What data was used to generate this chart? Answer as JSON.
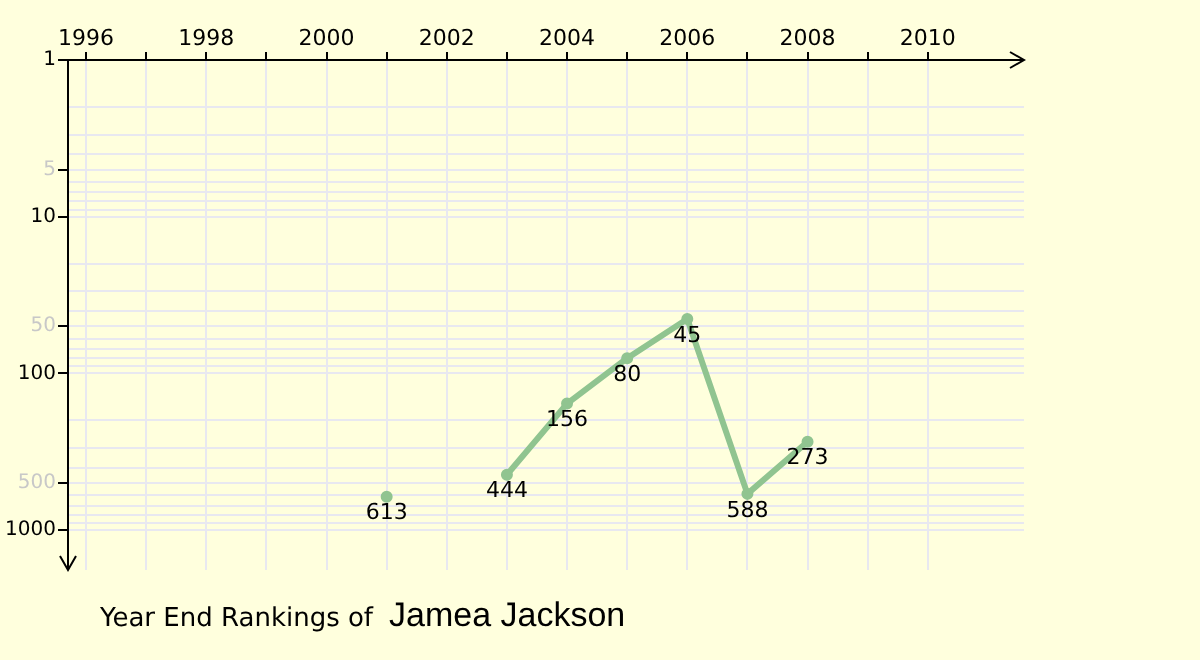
{
  "chart_data": {
    "type": "line",
    "title": "Year End Rankings of",
    "subtitle": "Jamea Jackson",
    "x": [
      2001,
      2002,
      2003,
      2004,
      2005,
      2006,
      2007,
      2008
    ],
    "series": [
      {
        "color": "#90c490",
        "values": [
          613,
          null,
          444,
          156,
          80,
          45,
          588,
          273
        ]
      }
    ],
    "xlim": [
      1995.7,
      2011.6
    ],
    "xticks": [
      1996,
      {
        "value": 1997,
        "label": null
      },
      1998,
      {
        "value": 1999,
        "label": null
      },
      2000,
      {
        "value": 2001,
        "label": null
      },
      2002,
      {
        "value": 2003,
        "label": null
      },
      2004,
      {
        "value": 2005,
        "label": null
      },
      2006,
      {
        "value": 2007,
        "label": null
      },
      2008,
      {
        "value": 2009,
        "label": null
      },
      2010
    ],
    "ylim": [
      1800,
      1
    ],
    "yticks": [
      1,
      {
        "value": 2,
        "label": null
      },
      {
        "value": 3,
        "label": null
      },
      {
        "value": 4,
        "label": null
      },
      5,
      {
        "value": 6,
        "label": null
      },
      {
        "value": 7,
        "label": null
      },
      {
        "value": 8,
        "label": null
      },
      {
        "value": 9,
        "label": null
      },
      10,
      {
        "value": 20,
        "label": null
      },
      {
        "value": 30,
        "label": null
      },
      {
        "value": 40,
        "label": null
      },
      50,
      {
        "value": 60,
        "label": null
      },
      {
        "value": 70,
        "label": null
      },
      {
        "value": 80,
        "label": null
      },
      {
        "value": 90,
        "label": null
      },
      100,
      {
        "value": 200,
        "label": null
      },
      {
        "value": 300,
        "label": null
      },
      {
        "value": 400,
        "label": null
      },
      500,
      {
        "value": 600,
        "label": null
      },
      {
        "value": 700,
        "label": null
      },
      {
        "value": 800,
        "label": null
      },
      {
        "value": 900,
        "label": null
      },
      1000
    ],
    "log": true,
    "grid": true,
    "legend": false,
    "marker": "circle",
    "data_labels": true
  }
}
